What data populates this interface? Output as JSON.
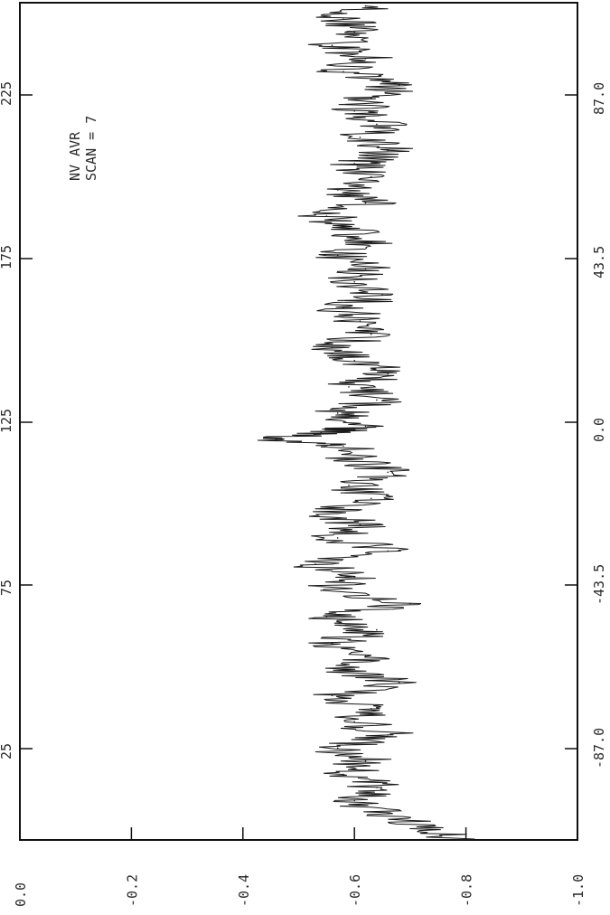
{
  "annotation": {
    "line1": "NV AVR",
    "line2": "SCAN =    7"
  },
  "chart_data": {
    "type": "line",
    "orientation": "rotated-90",
    "x_top_ticks": [
      "25",
      "75",
      "125",
      "175",
      "225"
    ],
    "x_bottom_ticks": [
      "-87.0",
      "-43.5",
      "0.0",
      "43.5",
      "87.0"
    ],
    "y_ticks": [
      "0.0",
      "-0.2",
      "-0.4",
      "-0.6",
      "-0.8",
      "-1.0"
    ],
    "ylim": [
      -1.0,
      0.0
    ],
    "xlim": [
      0,
      255
    ],
    "grid": false,
    "series": [
      {
        "x": [
          0,
          4,
          8,
          12,
          16,
          20,
          24,
          28,
          32,
          36,
          40,
          44,
          48,
          52,
          56,
          60,
          64,
          68,
          72,
          76,
          80,
          84,
          88,
          92,
          96,
          100,
          104,
          108,
          112,
          116,
          120,
          122,
          124,
          126,
          130,
          134,
          138,
          142,
          146,
          150,
          154,
          158,
          162,
          166,
          170,
          174,
          178,
          182,
          186,
          190,
          194,
          198,
          202,
          206,
          210,
          214,
          218,
          222,
          226,
          230,
          234,
          238,
          242,
          246,
          250,
          254
        ],
        "values": [
          -0.8,
          -0.72,
          -0.66,
          -0.6,
          -0.64,
          -0.58,
          -0.62,
          -0.57,
          -0.66,
          -0.6,
          -0.63,
          -0.56,
          -0.68,
          -0.58,
          -0.62,
          -0.56,
          -0.64,
          -0.55,
          -0.7,
          -0.54,
          -0.6,
          -0.53,
          -0.66,
          -0.57,
          -0.61,
          -0.55,
          -0.63,
          -0.59,
          -0.66,
          -0.6,
          -0.58,
          -0.46,
          -0.54,
          -0.62,
          -0.57,
          -0.64,
          -0.59,
          -0.66,
          -0.6,
          -0.56,
          -0.63,
          -0.61,
          -0.58,
          -0.65,
          -0.6,
          -0.62,
          -0.57,
          -0.63,
          -0.59,
          -0.55,
          -0.62,
          -0.57,
          -0.63,
          -0.6,
          -0.66,
          -0.61,
          -0.64,
          -0.6,
          -0.63,
          -0.68,
          -0.58,
          -0.62,
          -0.56,
          -0.6,
          -0.58,
          -0.62
        ]
      }
    ]
  }
}
